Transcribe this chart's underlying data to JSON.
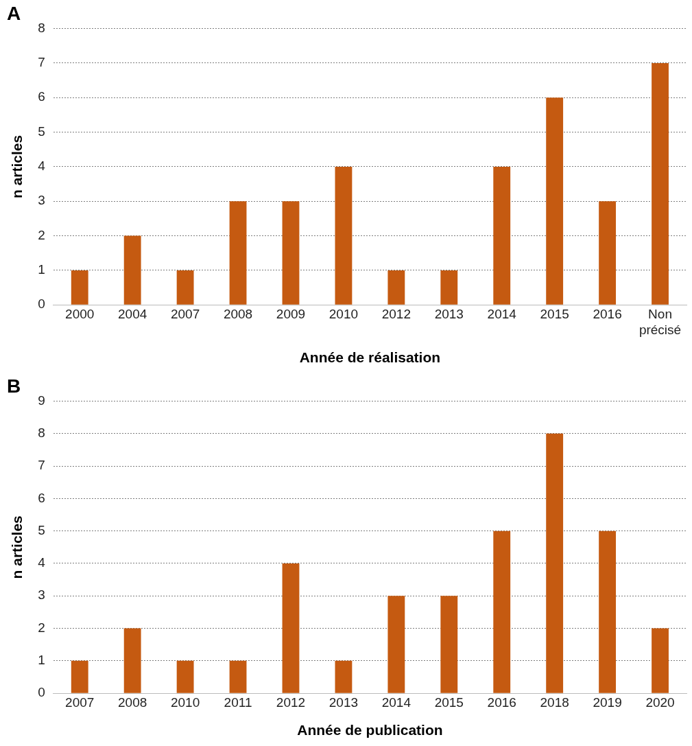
{
  "chart_data": [
    {
      "type": "bar",
      "title": "A",
      "xlabel": "Année de réalisation",
      "ylabel": "n articles",
      "categories": [
        "2000",
        "2004",
        "2007",
        "2008",
        "2009",
        "2010",
        "2012",
        "2013",
        "2014",
        "2015",
        "2016",
        "Non précisé"
      ],
      "values": [
        1,
        2,
        1,
        3,
        3,
        4,
        1,
        1,
        4,
        6,
        3,
        7
      ],
      "color": "#c55a11",
      "ylim": [
        0,
        8
      ],
      "yticks": [
        0,
        1,
        2,
        3,
        4,
        5,
        6,
        7,
        8
      ],
      "grid": "y",
      "legend": false
    },
    {
      "type": "bar",
      "title": "B",
      "xlabel": "Année de publication",
      "ylabel": "n articles",
      "categories": [
        "2007",
        "2008",
        "2010",
        "2011",
        "2012",
        "2013",
        "2014",
        "2015",
        "2016",
        "2018",
        "2019",
        "2020"
      ],
      "values": [
        1,
        2,
        1,
        1,
        4,
        1,
        3,
        3,
        5,
        8,
        5,
        2
      ],
      "color": "#c55a11",
      "ylim": [
        0,
        9
      ],
      "yticks": [
        0,
        1,
        2,
        3,
        4,
        5,
        6,
        7,
        8,
        9
      ],
      "grid": "y",
      "legend": false
    }
  ]
}
